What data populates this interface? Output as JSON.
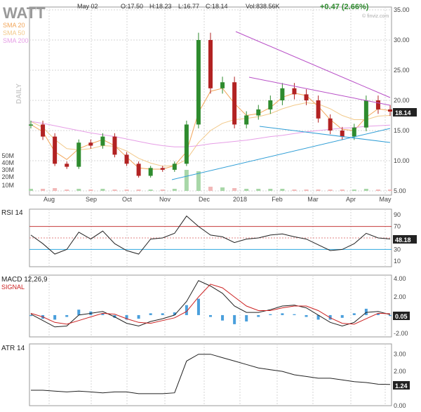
{
  "header": {
    "ticker": "WATT",
    "date": "May 02",
    "open": "O:17.50",
    "high": "H:18.23",
    "low": "L:16.77",
    "close": "C:18.14",
    "volume": "Vol:838.56K",
    "change": "+0.47 (2.66%)",
    "watermark": "© finviz.com",
    "period": "DAILY"
  },
  "legend": [
    {
      "label": "SMA 20",
      "color": "#f2a65a"
    },
    {
      "label": "SMA 50",
      "color": "#f2c98a"
    },
    {
      "label": "SMA 200",
      "color": "#e69ee6"
    }
  ],
  "colors": {
    "up_candle": "#2e8b2e",
    "down_candle": "#b22222",
    "sma20": "#f2a65a",
    "sma50": "#f2c98a",
    "sma200": "#e69ee6",
    "trend_purple": "#b84fc7",
    "trend_blue": "#2f9ed6",
    "rsi_line": "#222222",
    "rsi_high": "#c43c3c",
    "rsi_low": "#2fa8e0",
    "macd": "#222222",
    "signal": "#cc2222",
    "hist": "#4a9fdc",
    "atr": "#222222",
    "volume_up": "#a8d7a8",
    "volume_down": "#f2b8b8"
  },
  "months": [
    "Aug",
    "Sep",
    "Oct",
    "Nov",
    "Dec",
    "2018",
    "Feb",
    "Mar",
    "Apr",
    "May"
  ],
  "price_ticks": [
    "35.00",
    "30.00",
    "25.00",
    "20.00",
    "15.00",
    "10.00",
    "5.00"
  ],
  "volume_ticks": [
    "50M",
    "40M",
    "30M",
    "20M",
    "10M"
  ],
  "last_price": "18.14",
  "rsi": {
    "title": "RSI 14",
    "ticks": [
      "90",
      "70",
      "50",
      "30",
      "10"
    ],
    "last": "48.18"
  },
  "macd": {
    "title": "MACD 12,26,9",
    "signal_label": "SIGNAL",
    "ticks": [
      "4.00",
      "2.00",
      "0.05",
      "-2.00"
    ],
    "last": "0.05"
  },
  "atr": {
    "title": "ATR 14",
    "ticks": [
      "3.00",
      "2.00",
      "1.24",
      "0.00"
    ],
    "last": "1.24"
  },
  "chart_data": {
    "type": "line",
    "title": "WATT",
    "interval": "daily",
    "x": [
      "2017-07-12",
      "2017-07-26",
      "2017-08-09",
      "2017-08-23",
      "2017-09-06",
      "2017-09-20",
      "2017-10-04",
      "2017-10-18",
      "2017-11-01",
      "2017-11-15",
      "2017-11-29",
      "2017-12-13",
      "2017-12-27",
      "2018-01-01",
      "2018-01-08",
      "2018-01-16",
      "2018-01-23",
      "2018-01-30",
      "2018-02-06",
      "2018-02-13",
      "2018-02-20",
      "2018-02-27",
      "2018-03-06",
      "2018-03-13",
      "2018-03-20",
      "2018-03-27",
      "2018-04-03",
      "2018-04-10",
      "2018-04-17",
      "2018-04-24",
      "2018-05-02"
    ],
    "series": [
      {
        "name": "close",
        "values": [
          16.0,
          14.0,
          9.5,
          9.0,
          13.0,
          12.5,
          14.0,
          11.0,
          9.5,
          7.5,
          8.8,
          8.5,
          9.5,
          16.0,
          30.0,
          22.0,
          23.0,
          16.0,
          17.5,
          18.5,
          20.0,
          22.0,
          21.0,
          20.0,
          17.0,
          15.0,
          14.0,
          15.5,
          20.0,
          18.5,
          18.14
        ]
      },
      {
        "name": "SMA 20",
        "values": [
          16.0,
          14.8,
          11.5,
          10.2,
          12.0,
          12.8,
          13.5,
          12.5,
          10.6,
          8.8,
          8.6,
          8.6,
          9.2,
          11.5,
          18.0,
          21.5,
          22.0,
          19.5,
          17.5,
          17.8,
          18.8,
          20.5,
          21.2,
          20.8,
          19.0,
          16.8,
          15.2,
          15.0,
          17.2,
          18.6,
          18.3
        ]
      },
      {
        "name": "SMA 50",
        "values": [
          16.5,
          15.5,
          13.5,
          12.0,
          11.8,
          12.0,
          12.5,
          12.4,
          11.6,
          10.4,
          9.6,
          9.1,
          9.2,
          10.2,
          13.0,
          15.0,
          16.2,
          16.8,
          17.0,
          17.3,
          17.8,
          18.6,
          19.2,
          19.6,
          19.4,
          18.6,
          17.5,
          16.8,
          16.8,
          17.4,
          17.5
        ]
      },
      {
        "name": "SMA 200",
        "values": [
          16.5,
          16.2,
          15.8,
          15.4,
          15.0,
          14.6,
          14.3,
          14.0,
          13.6,
          13.2,
          12.8,
          12.5,
          12.3,
          12.3,
          12.5,
          12.8,
          13.0,
          13.2,
          13.4,
          13.7,
          14.0,
          14.2,
          14.5,
          14.8,
          15.0,
          15.2,
          15.4,
          15.5,
          15.7,
          15.8,
          15.9
        ]
      }
    ],
    "volume": [
      3,
      3,
      4,
      2,
      3,
      2,
      3,
      2,
      2,
      2,
      2,
      2,
      3,
      30,
      28,
      6,
      5,
      4,
      3,
      3,
      3,
      3,
      2,
      2,
      2,
      2,
      2,
      2,
      3,
      2,
      2
    ],
    "rsi_values": [
      55,
      40,
      22,
      30,
      60,
      48,
      62,
      40,
      28,
      22,
      48,
      50,
      58,
      88,
      70,
      55,
      52,
      42,
      48,
      50,
      55,
      57,
      52,
      48,
      38,
      28,
      30,
      40,
      58,
      50,
      48.18
    ],
    "macd_values": [
      0.1,
      -0.6,
      -1.3,
      -1.2,
      0.0,
      0.2,
      0.4,
      -0.2,
      -0.9,
      -1.2,
      -0.7,
      -0.4,
      0.0,
      1.5,
      3.8,
      3.2,
      2.4,
      1.0,
      0.3,
      0.3,
      0.6,
      1.0,
      1.1,
      0.8,
      0.0,
      -0.8,
      -1.2,
      -0.8,
      0.3,
      0.4,
      0.05
    ],
    "signal_values": [
      0.2,
      -0.2,
      -0.8,
      -1.0,
      -0.6,
      -0.2,
      0.2,
      0.1,
      -0.4,
      -0.8,
      -0.9,
      -0.6,
      -0.3,
      0.4,
      2.0,
      3.4,
      3.0,
      2.0,
      1.0,
      0.5,
      0.5,
      0.8,
      1.0,
      1.0,
      0.5,
      -0.3,
      -0.9,
      -1.0,
      -0.4,
      0.2,
      0.15
    ],
    "atr_values": [
      0.9,
      0.9,
      0.85,
      0.8,
      0.85,
      0.8,
      0.75,
      0.8,
      0.8,
      0.7,
      0.7,
      0.7,
      0.75,
      2.6,
      3.0,
      3.0,
      2.8,
      2.6,
      2.4,
      2.2,
      2.1,
      2.0,
      1.8,
      1.7,
      1.6,
      1.6,
      1.5,
      1.4,
      1.35,
      1.25,
      1.24
    ],
    "ylim": [
      5,
      35
    ],
    "rsi_ylim": [
      0,
      100
    ],
    "macd_ylim": [
      -2.4,
      4.4
    ],
    "atr_ylim": [
      0,
      3.6
    ],
    "ylabel": "",
    "xlabel": "",
    "grid": true,
    "legend_position": "top-left"
  }
}
